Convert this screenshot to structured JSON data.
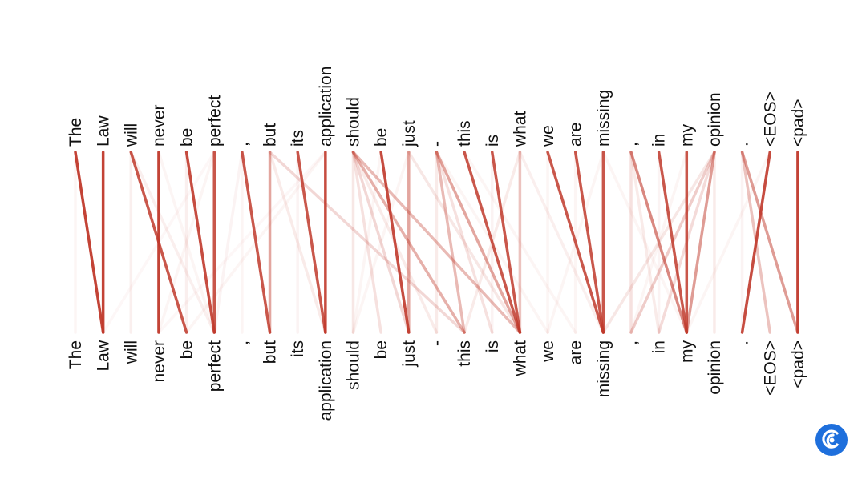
{
  "tokens": [
    "The",
    "Law",
    "will",
    "never",
    "be",
    "perfect",
    ",",
    "but",
    "its",
    "application",
    "should",
    "be",
    "just",
    "-",
    "this",
    "is",
    "what",
    "we",
    "are",
    "missing",
    ",",
    "in",
    "my",
    "opinion",
    ".",
    "<EOS>",
    "<pad>"
  ],
  "attention_links": [
    {
      "from": 0,
      "to": 1,
      "w": 0.95
    },
    {
      "from": 0,
      "to": 0,
      "w": 0.05
    },
    {
      "from": 1,
      "to": 1,
      "w": 0.95
    },
    {
      "from": 2,
      "to": 4,
      "w": 0.85
    },
    {
      "from": 2,
      "to": 2,
      "w": 0.08
    },
    {
      "from": 2,
      "to": 5,
      "w": 0.08
    },
    {
      "from": 3,
      "to": 3,
      "w": 0.95
    },
    {
      "from": 3,
      "to": 5,
      "w": 0.05
    },
    {
      "from": 4,
      "to": 5,
      "w": 0.9
    },
    {
      "from": 4,
      "to": 4,
      "w": 0.08
    },
    {
      "from": 5,
      "to": 5,
      "w": 0.85
    },
    {
      "from": 5,
      "to": 3,
      "w": 0.05
    },
    {
      "from": 5,
      "to": 1,
      "w": 0.04
    },
    {
      "from": 6,
      "to": 7,
      "w": 0.85
    },
    {
      "from": 6,
      "to": 5,
      "w": 0.06
    },
    {
      "from": 6,
      "to": 6,
      "w": 0.05
    },
    {
      "from": 7,
      "to": 7,
      "w": 0.45
    },
    {
      "from": 7,
      "to": 14,
      "w": 0.2
    },
    {
      "from": 7,
      "to": 9,
      "w": 0.1
    },
    {
      "from": 8,
      "to": 9,
      "w": 0.85
    },
    {
      "from": 8,
      "to": 8,
      "w": 0.06
    },
    {
      "from": 9,
      "to": 9,
      "w": 0.9
    },
    {
      "from": 9,
      "to": 4,
      "w": 0.05
    },
    {
      "from": 9,
      "to": 3,
      "w": 0.04
    },
    {
      "from": 10,
      "to": 14,
      "w": 0.4
    },
    {
      "from": 10,
      "to": 16,
      "w": 0.35
    },
    {
      "from": 10,
      "to": 12,
      "w": 0.2
    },
    {
      "from": 10,
      "to": 11,
      "w": 0.15
    },
    {
      "from": 10,
      "to": 10,
      "w": 0.12
    },
    {
      "from": 10,
      "to": 13,
      "w": 0.1
    },
    {
      "from": 11,
      "to": 12,
      "w": 0.9
    },
    {
      "from": 11,
      "to": 10,
      "w": 0.05
    },
    {
      "from": 12,
      "to": 12,
      "w": 0.45
    },
    {
      "from": 12,
      "to": 16,
      "w": 0.12
    },
    {
      "from": 12,
      "to": 10,
      "w": 0.05
    },
    {
      "from": 13,
      "to": 16,
      "w": 0.45
    },
    {
      "from": 13,
      "to": 14,
      "w": 0.35
    },
    {
      "from": 13,
      "to": 15,
      "w": 0.15
    },
    {
      "from": 13,
      "to": 13,
      "w": 0.1
    },
    {
      "from": 13,
      "to": 17,
      "w": 0.05
    },
    {
      "from": 14,
      "to": 16,
      "w": 0.85
    },
    {
      "from": 14,
      "to": 18,
      "w": 0.05
    },
    {
      "from": 15,
      "to": 16,
      "w": 0.85
    },
    {
      "from": 15,
      "to": 15,
      "w": 0.06
    },
    {
      "from": 16,
      "to": 16,
      "w": 0.3
    },
    {
      "from": 16,
      "to": 14,
      "w": 0.1
    },
    {
      "from": 16,
      "to": 19,
      "w": 0.08
    },
    {
      "from": 17,
      "to": 19,
      "w": 0.85
    },
    {
      "from": 17,
      "to": 17,
      "w": 0.05
    },
    {
      "from": 18,
      "to": 19,
      "w": 0.85
    },
    {
      "from": 18,
      "to": 18,
      "w": 0.05
    },
    {
      "from": 19,
      "to": 19,
      "w": 0.85
    },
    {
      "from": 19,
      "to": 17,
      "w": 0.05
    },
    {
      "from": 19,
      "to": 22,
      "w": 0.05
    },
    {
      "from": 20,
      "to": 22,
      "w": 0.6
    },
    {
      "from": 20,
      "to": 20,
      "w": 0.15
    },
    {
      "from": 20,
      "to": 21,
      "w": 0.1
    },
    {
      "from": 21,
      "to": 22,
      "w": 0.85
    },
    {
      "from": 21,
      "to": 21,
      "w": 0.06
    },
    {
      "from": 22,
      "to": 22,
      "w": 0.85
    },
    {
      "from": 22,
      "to": 20,
      "w": 0.05
    },
    {
      "from": 23,
      "to": 22,
      "w": 0.5
    },
    {
      "from": 23,
      "to": 20,
      "w": 0.25
    },
    {
      "from": 23,
      "to": 21,
      "w": 0.18
    },
    {
      "from": 23,
      "to": 19,
      "w": 0.12
    },
    {
      "from": 23,
      "to": 23,
      "w": 0.1
    },
    {
      "from": 24,
      "to": 26,
      "w": 0.5
    },
    {
      "from": 24,
      "to": 25,
      "w": 0.3
    },
    {
      "from": 24,
      "to": 24,
      "w": 0.06
    },
    {
      "from": 25,
      "to": 24,
      "w": 0.9
    },
    {
      "from": 25,
      "to": 22,
      "w": 0.05
    },
    {
      "from": 26,
      "to": 26,
      "w": 0.95
    }
  ],
  "colors": {
    "link": "#c0392b",
    "text": "#111111",
    "logo": "#1e6fdc"
  },
  "logo_icon": "swirl-logo-icon"
}
